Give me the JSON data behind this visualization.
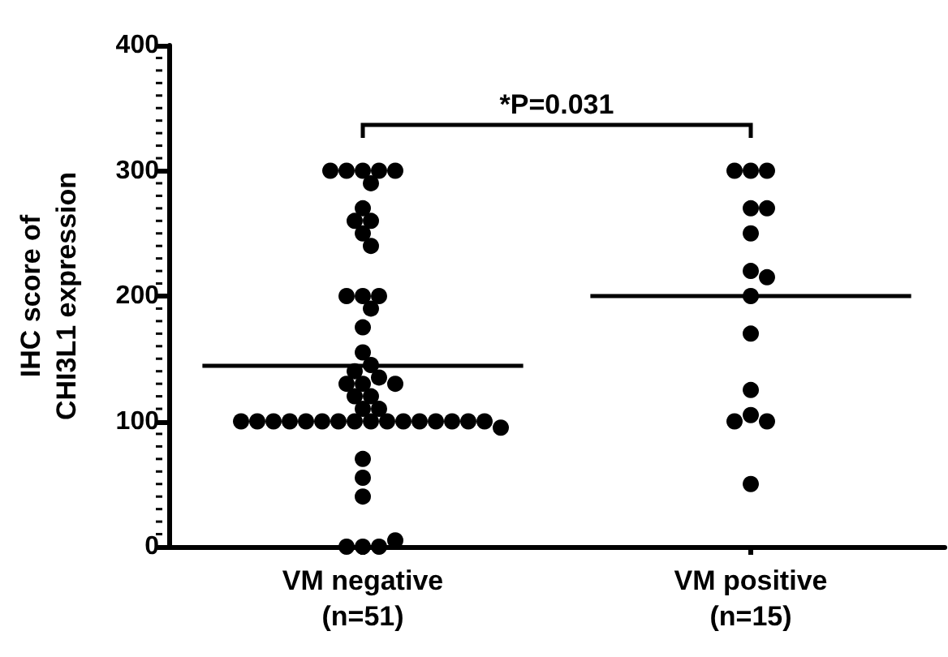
{
  "chart_data": {
    "type": "scatter",
    "ylabel": "IHC score of\nCHI3L1 expression",
    "categories": [
      "VM negative\n(n=51)",
      "VM positive\n(n=15)"
    ],
    "ylim": [
      0,
      400
    ],
    "yticks": [
      0,
      100,
      200,
      300,
      400
    ],
    "grid": false,
    "marker": "circle",
    "annotations": [
      "*P=0.031"
    ],
    "ref_lines": [
      {
        "axis": "y",
        "value": 145,
        "color": "#000000"
      },
      {
        "axis": "y",
        "value": 200,
        "color": "#000000"
      }
    ],
    "series": [
      {
        "color": "#000000",
        "x": [
          "VM negative\n(n=51)",
          "VM negative\n(n=51)",
          "VM negative\n(n=51)",
          "VM negative\n(n=51)",
          "VM negative\n(n=51)",
          "VM negative\n(n=51)",
          "VM negative\n(n=51)",
          "VM negative\n(n=51)",
          "VM negative\n(n=51)",
          "VM negative\n(n=51)",
          "VM negative\n(n=51)",
          "VM negative\n(n=51)",
          "VM negative\n(n=51)",
          "VM negative\n(n=51)",
          "VM negative\n(n=51)",
          "VM negative\n(n=51)",
          "VM negative\n(n=51)",
          "VM negative\n(n=51)",
          "VM negative\n(n=51)",
          "VM negative\n(n=51)",
          "VM negative\n(n=51)",
          "VM negative\n(n=51)",
          "VM negative\n(n=51)",
          "VM negative\n(n=51)",
          "VM negative\n(n=51)",
          "VM negative\n(n=51)",
          "VM negative\n(n=51)",
          "VM negative\n(n=51)",
          "VM negative\n(n=51)",
          "VM negative\n(n=51)",
          "VM negative\n(n=51)",
          "VM negative\n(n=51)",
          "VM negative\n(n=51)",
          "VM negative\n(n=51)",
          "VM negative\n(n=51)",
          "VM negative\n(n=51)",
          "VM negative\n(n=51)",
          "VM negative\n(n=51)",
          "VM negative\n(n=51)",
          "VM negative\n(n=51)",
          "VM negative\n(n=51)",
          "VM negative\n(n=51)",
          "VM negative\n(n=51)",
          "VM negative\n(n=51)",
          "VM negative\n(n=51)",
          "VM negative\n(n=51)",
          "VM negative\n(n=51)",
          "VM negative\n(n=51)",
          "VM negative\n(n=51)",
          "VM negative\n(n=51)",
          "VM negative\n(n=51)"
        ],
        "values": [
          300,
          300,
          300,
          300,
          300,
          290,
          270,
          260,
          260,
          250,
          240,
          200,
          200,
          200,
          190,
          175,
          155,
          145,
          140,
          135,
          130,
          130,
          130,
          120,
          120,
          110,
          110,
          100,
          100,
          100,
          100,
          100,
          100,
          100,
          100,
          100,
          100,
          100,
          100,
          100,
          100,
          100,
          100,
          95,
          70,
          55,
          40,
          0,
          0,
          0,
          5
        ]
      },
      {
        "color": "#000000",
        "x": [
          "VM positive\n(n=15)",
          "VM positive\n(n=15)",
          "VM positive\n(n=15)",
          "VM positive\n(n=15)",
          "VM positive\n(n=15)",
          "VM positive\n(n=15)",
          "VM positive\n(n=15)",
          "VM positive\n(n=15)",
          "VM positive\n(n=15)",
          "VM positive\n(n=15)",
          "VM positive\n(n=15)",
          "VM positive\n(n=15)",
          "VM positive\n(n=15)",
          "VM positive\n(n=15)",
          "VM positive\n(n=15)"
        ],
        "values": [
          300,
          300,
          300,
          270,
          270,
          250,
          220,
          215,
          200,
          170,
          125,
          105,
          100,
          100,
          50
        ]
      }
    ]
  }
}
